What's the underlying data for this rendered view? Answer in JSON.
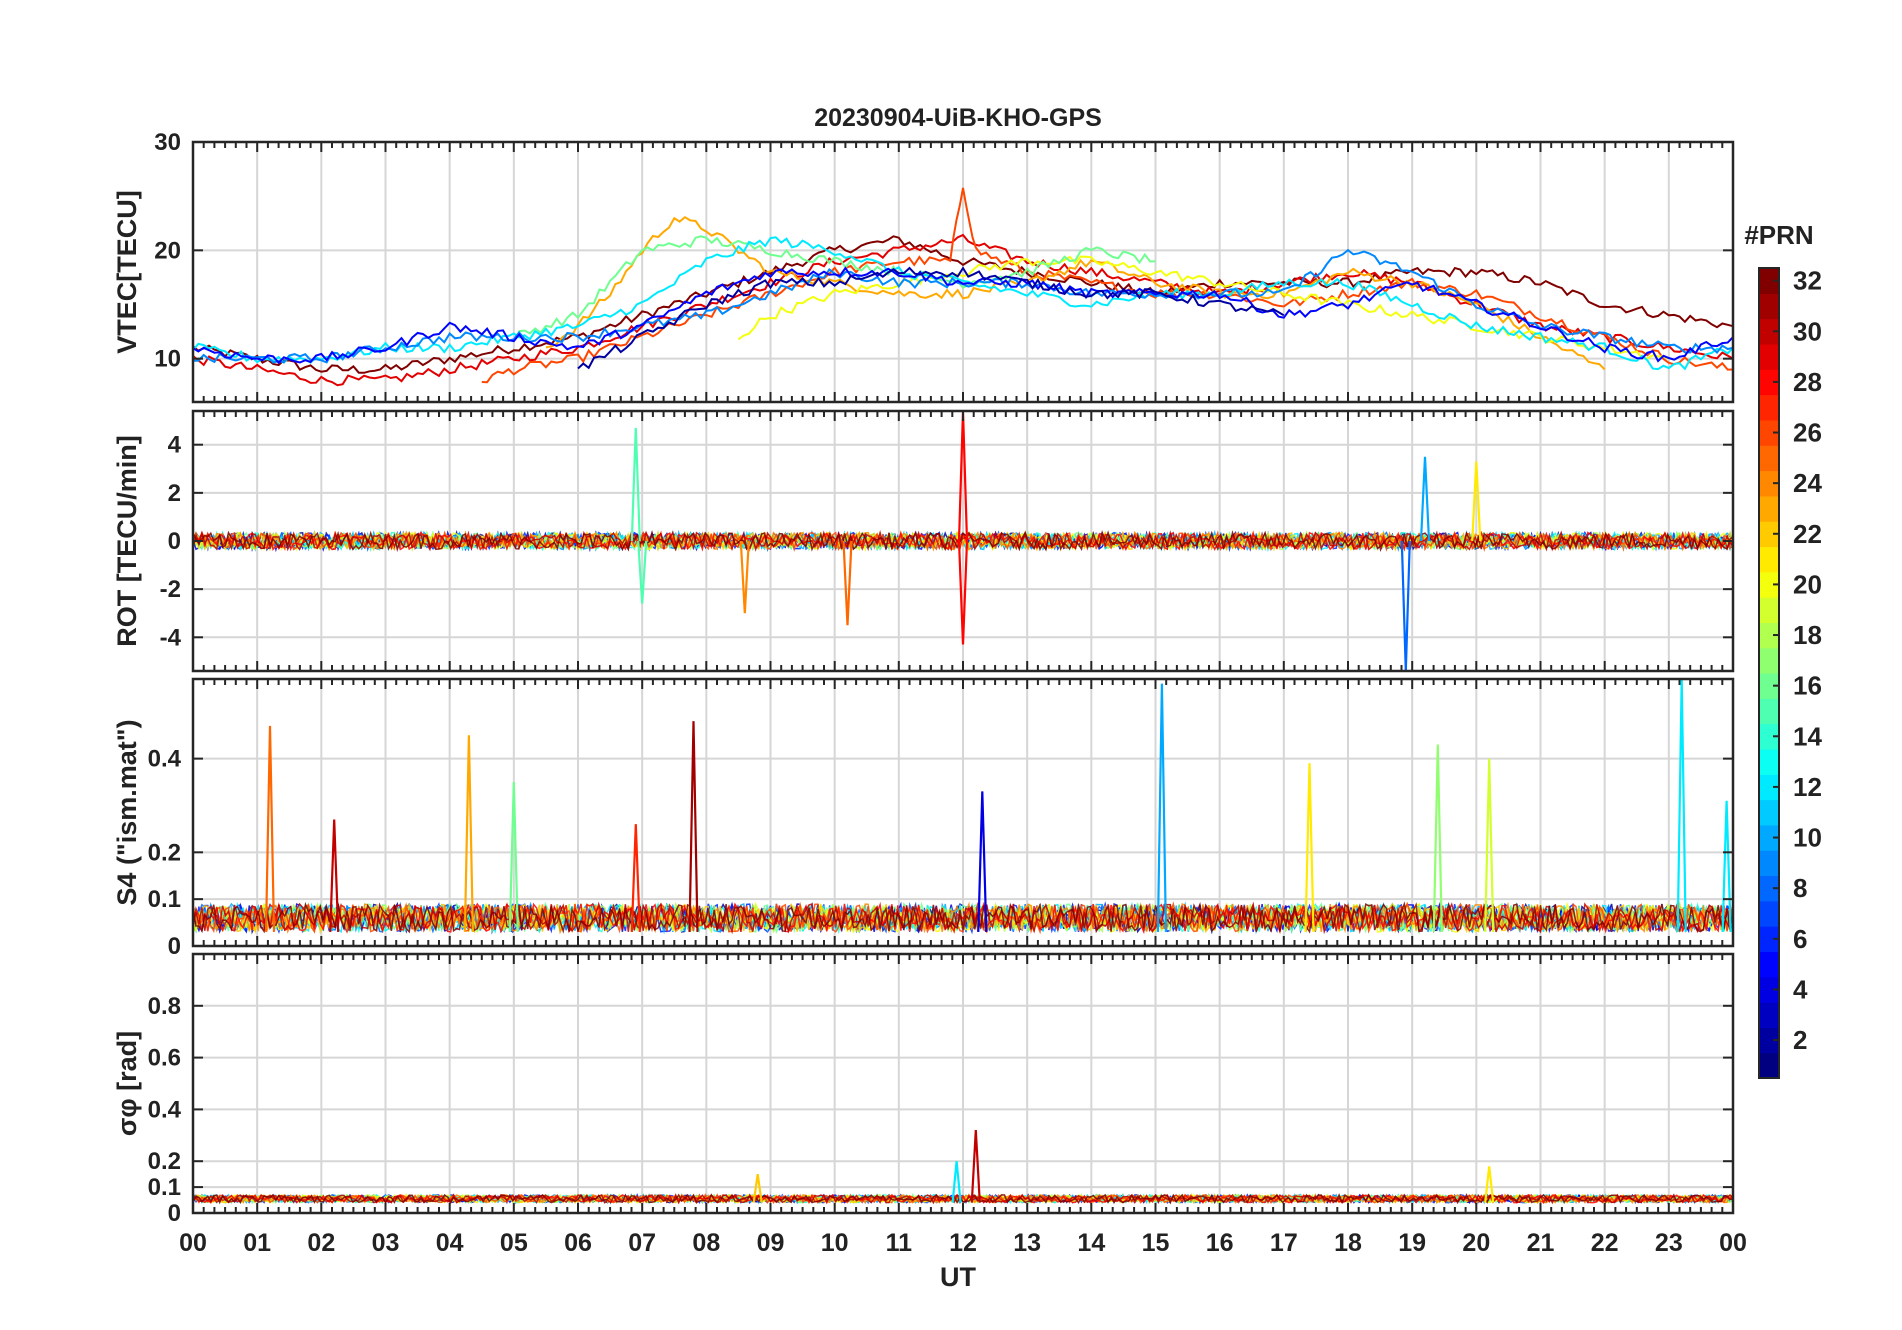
{
  "chart_data": {
    "title": "20230904-UiB-KHO-GPS",
    "type": "line",
    "x_axis": {
      "label": "UT",
      "range": [
        0,
        24
      ],
      "tick_labels": [
        "00",
        "01",
        "02",
        "03",
        "04",
        "05",
        "06",
        "07",
        "08",
        "09",
        "10",
        "11",
        "12",
        "13",
        "14",
        "15",
        "16",
        "17",
        "18",
        "19",
        "20",
        "21",
        "22",
        "23",
        "00"
      ]
    },
    "grid": true,
    "colorbar": {
      "title": "#PRN",
      "range": [
        1,
        32
      ],
      "tick_labels": [
        "2",
        "4",
        "6",
        "8",
        "10",
        "12",
        "14",
        "16",
        "18",
        "20",
        "22",
        "24",
        "26",
        "28",
        "30",
        "32"
      ],
      "colormap": "jet"
    },
    "panels": [
      {
        "id": "vtec",
        "ylabel": "VTEC[TECU]",
        "ylim": [
          6,
          30
        ],
        "yticks": [
          10,
          20,
          30
        ],
        "ytick_labels": [
          "10",
          "20",
          "30"
        ],
        "series": [
          {
            "prn": 32,
            "x": [
              0,
              1,
              2,
              3,
              4,
              5,
              6,
              7,
              8,
              9,
              10,
              11,
              12,
              13,
              14,
              15,
              16,
              17,
              18,
              19,
              20,
              21,
              22,
              23,
              24
            ],
            "values": [
              11,
              10,
              9,
              9,
              10,
              11,
              12,
              14,
              16,
              18,
              20,
              21,
              19,
              18,
              17,
              16,
              17,
              17,
              17,
              18,
              18,
              17,
              15,
              14,
              13
            ]
          },
          {
            "prn": 29,
            "x": [
              0,
              1,
              2,
              3,
              4,
              5,
              6,
              7,
              8,
              9,
              10,
              11,
              12,
              13,
              14,
              15,
              16,
              17,
              18,
              19,
              20,
              21,
              22,
              23,
              24
            ],
            "values": [
              10,
              9,
              8,
              8,
              9,
              10,
              11,
              13,
              15,
              17,
              19,
              20,
              21,
              19,
              18,
              17,
              16,
              17,
              18,
              17,
              15,
              13,
              12,
              11,
              10
            ]
          },
          {
            "prn": 26,
            "x": [
              4.5,
              5,
              6,
              7,
              8,
              9,
              10,
              11,
              11.8,
              12,
              12.2,
              13,
              14,
              15,
              16,
              17,
              18,
              19,
              20,
              21,
              22,
              23,
              24
            ],
            "values": [
              8,
              9,
              10,
              12,
              14,
              16,
              18,
              19,
              19,
              26,
              20,
              18,
              17,
              16,
              16,
              15,
              16,
              17,
              16,
              14,
              12,
              10,
              9
            ]
          },
          {
            "prn": 23,
            "x": [
              5.5,
              6,
              6.5,
              7,
              7.5,
              8,
              8.5,
              9,
              10,
              11,
              12,
              13,
              14,
              15,
              16,
              17,
              18,
              19,
              20,
              21,
              22
            ],
            "values": [
              11,
              13,
              16,
              20,
              23,
              22,
              20,
              18,
              17,
              16,
              16,
              17,
              19,
              17,
              16,
              16,
              18,
              17,
              15,
              12,
              9
            ]
          },
          {
            "prn": 20,
            "x": [
              8.5,
              9,
              10,
              11,
              12,
              13,
              14,
              15,
              16,
              17,
              18,
              19,
              20,
              21,
              22,
              23
            ],
            "values": [
              12,
              14,
              16,
              17,
              18,
              19,
              19,
              18,
              17,
              16,
              15,
              14,
              13,
              12,
              11,
              10
            ]
          },
          {
            "prn": 16,
            "x": [
              5,
              6,
              7,
              8,
              9,
              10,
              11,
              12,
              13,
              14,
              15
            ],
            "values": [
              12,
              14,
              20,
              21,
              20,
              19,
              18,
              17,
              18,
              20,
              19
            ]
          },
          {
            "prn": 12,
            "x": [
              0,
              1,
              2,
              3,
              4,
              5,
              6,
              7,
              8,
              9,
              10,
              11,
              12,
              13,
              14,
              15,
              16,
              17,
              18,
              19,
              20,
              21,
              22,
              23,
              24
            ],
            "values": [
              11,
              10,
              10,
              11,
              11,
              12,
              13,
              15,
              19,
              21,
              20,
              18,
              17,
              16,
              15,
              16,
              16,
              17,
              17,
              15,
              13,
              12,
              11,
              9,
              11
            ]
          },
          {
            "prn": 9,
            "x": [
              0,
              1,
              2,
              3,
              4,
              5,
              6,
              7,
              8,
              9,
              10,
              11,
              12,
              13,
              14,
              15,
              16,
              17,
              18,
              19,
              20,
              21,
              22,
              23,
              24
            ],
            "values": [
              10,
              10,
              10,
              11,
              12,
              12,
              12,
              13,
              14,
              16,
              18,
              17,
              17,
              17,
              16,
              16,
              16,
              16,
              20,
              18,
              15,
              13,
              12,
              11,
              11
            ]
          },
          {
            "prn": 5,
            "x": [
              0,
              1,
              2,
              3,
              4,
              5,
              6,
              7,
              8,
              9,
              10,
              11,
              12,
              13,
              14,
              15,
              16,
              17,
              18,
              19,
              20,
              21,
              22,
              23,
              24
            ],
            "values": [
              11,
              10,
              10,
              11,
              13,
              12,
              11,
              13,
              16,
              18,
              18,
              18,
              17,
              17,
              16,
              16,
              16,
              14,
              15,
              17,
              15,
              13,
              11,
              10,
              12
            ]
          },
          {
            "prn": 2,
            "x": [
              6,
              7,
              8,
              9,
              10,
              11,
              12,
              13,
              14,
              15,
              16,
              17
            ],
            "values": [
              9,
              12,
              15,
              17,
              17,
              18,
              18,
              17,
              16,
              16,
              15,
              14
            ]
          }
        ]
      },
      {
        "id": "rot",
        "ylabel": "ROT [TECU/min]",
        "ylim": [
          -5.4,
          5.4
        ],
        "yticks": [
          -4,
          -2,
          0,
          2,
          4
        ],
        "ytick_labels": [
          "-4",
          "-2",
          "0",
          "2",
          "4"
        ],
        "noise_note": "all PRNs fluctuate around 0 with spikes",
        "spikes": [
          {
            "x": 6.9,
            "value": 4.7,
            "prn": 15
          },
          {
            "x": 7.0,
            "value": -2.6,
            "prn": 15
          },
          {
            "x": 12.0,
            "value": 5.4,
            "prn": 28
          },
          {
            "x": 12.0,
            "value": -4.3,
            "prn": 28
          },
          {
            "x": 18.9,
            "value": -5.4,
            "prn": 8
          },
          {
            "x": 19.2,
            "value": 3.5,
            "prn": 10
          },
          {
            "x": 20.0,
            "value": 3.3,
            "prn": 21
          },
          {
            "x": 8.6,
            "value": -3.0,
            "prn": 24
          },
          {
            "x": 10.2,
            "value": -3.5,
            "prn": 25
          }
        ]
      },
      {
        "id": "s4",
        "ylabel": "S4 (\"ism.mat\")",
        "ylim": [
          0,
          0.57
        ],
        "yticks": [
          0,
          0.1,
          0.2,
          0.4
        ],
        "ytick_labels": [
          "0",
          "0.1",
          "0.2",
          "0.4"
        ],
        "spikes": [
          {
            "x": 1.2,
            "value": 0.47,
            "prn": 25
          },
          {
            "x": 2.2,
            "value": 0.27,
            "prn": 30
          },
          {
            "x": 4.3,
            "value": 0.45,
            "prn": 23
          },
          {
            "x": 5.0,
            "value": 0.35,
            "prn": 16
          },
          {
            "x": 6.9,
            "value": 0.26,
            "prn": 27
          },
          {
            "x": 7.8,
            "value": 0.48,
            "prn": 31
          },
          {
            "x": 12.3,
            "value": 0.33,
            "prn": 4
          },
          {
            "x": 15.1,
            "value": 0.56,
            "prn": 10
          },
          {
            "x": 17.4,
            "value": 0.39,
            "prn": 21
          },
          {
            "x": 19.4,
            "value": 0.43,
            "prn": 17
          },
          {
            "x": 20.2,
            "value": 0.4,
            "prn": 19
          },
          {
            "x": 23.2,
            "value": 0.57,
            "prn": 12
          },
          {
            "x": 23.9,
            "value": 0.31,
            "prn": 12
          }
        ]
      },
      {
        "id": "sigma",
        "ylabel": "σφ [rad]",
        "ylim": [
          0,
          1
        ],
        "yticks": [
          0,
          0.1,
          0.2,
          0.4,
          0.6,
          0.8
        ],
        "ytick_labels": [
          "0",
          "0.1",
          "0.2",
          "0.4",
          "0.6",
          "0.8"
        ],
        "spikes": [
          {
            "x": 12.2,
            "value": 0.32,
            "prn": 30
          },
          {
            "x": 11.9,
            "value": 0.2,
            "prn": 12
          },
          {
            "x": 8.8,
            "value": 0.15,
            "prn": 22
          },
          {
            "x": 20.2,
            "value": 0.18,
            "prn": 21
          }
        ]
      }
    ]
  }
}
